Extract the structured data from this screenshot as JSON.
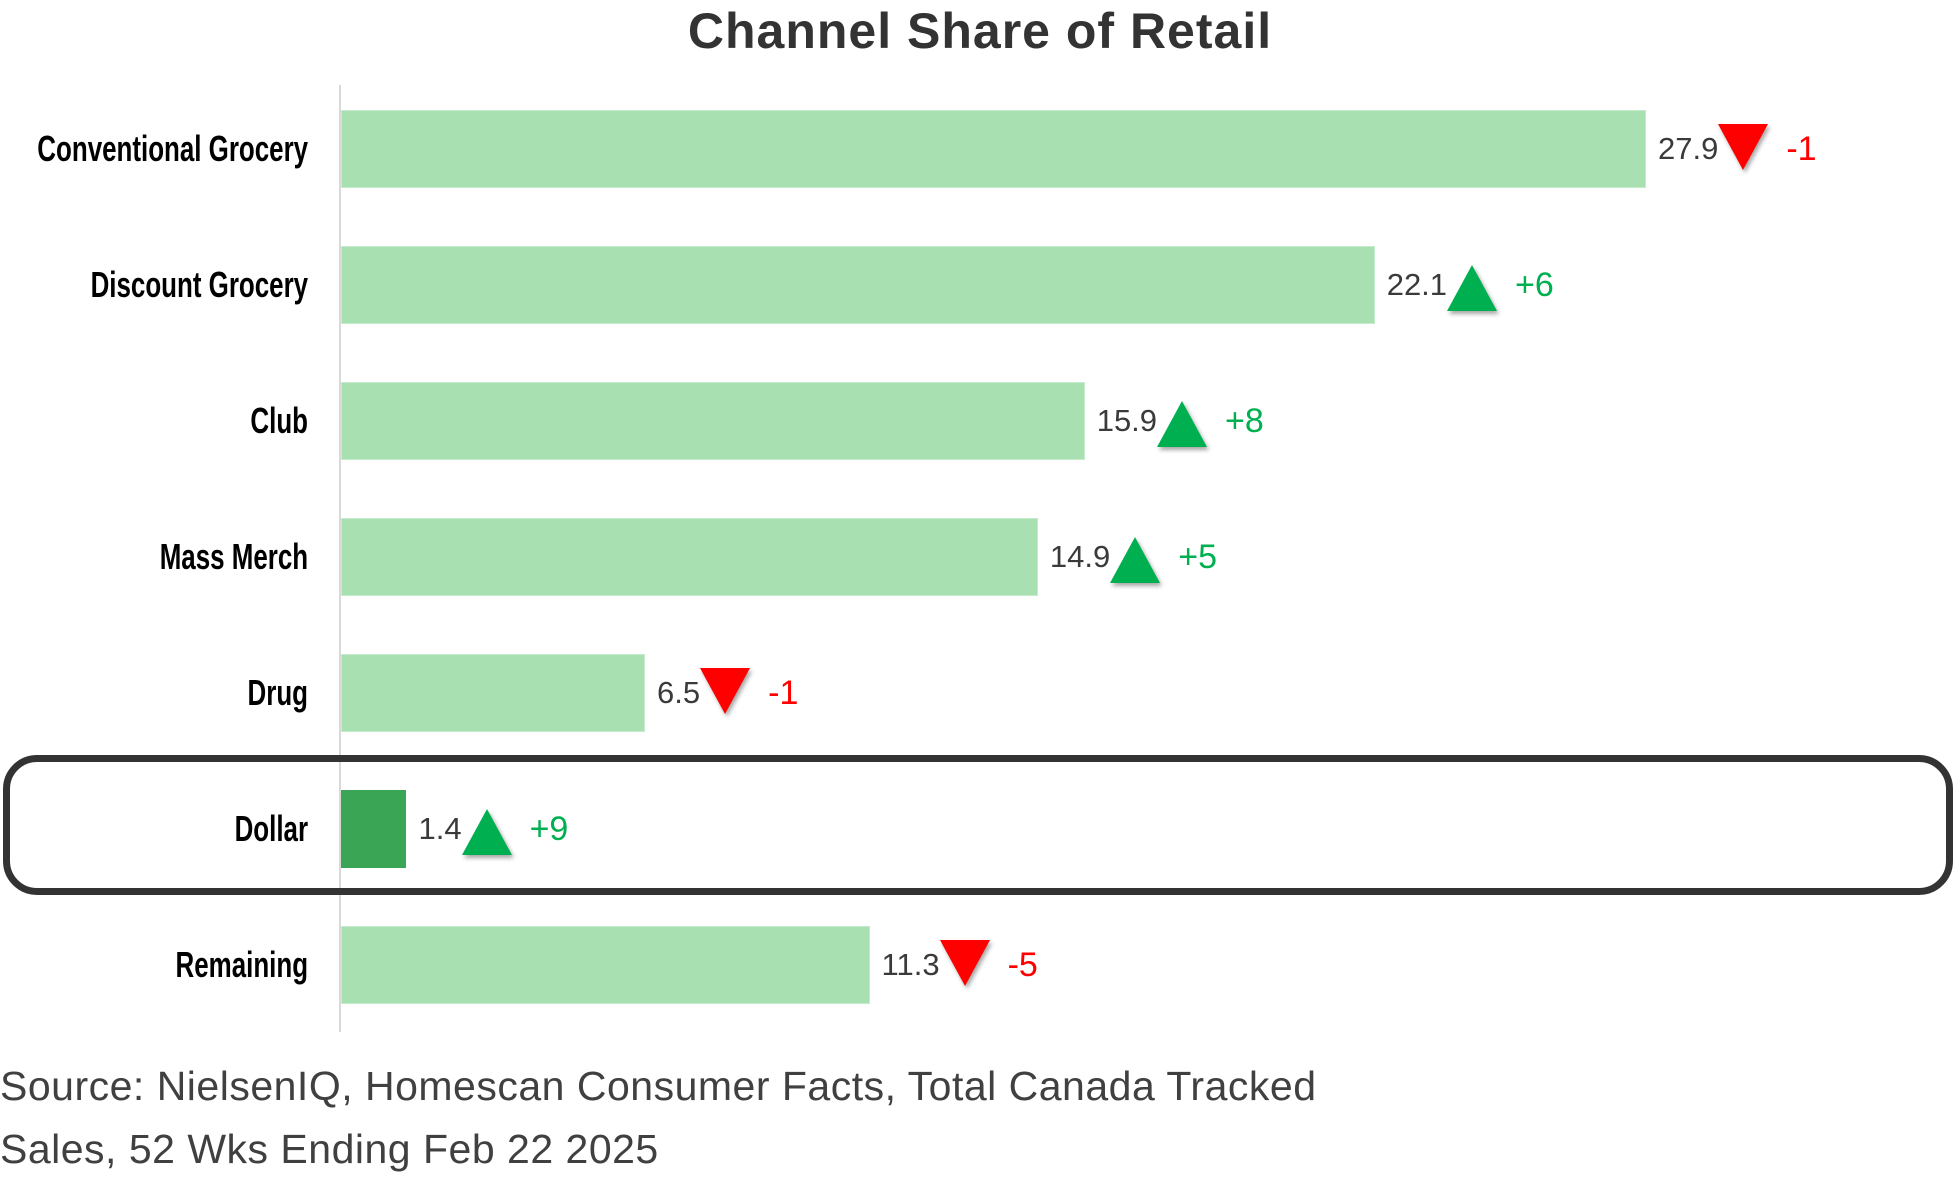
{
  "chart_data": {
    "type": "bar",
    "orientation": "horizontal",
    "title": "Channel Share of Retail",
    "categories": [
      "Conventional Grocery",
      "Discount Grocery",
      "Club",
      "Mass Merch",
      "Drug",
      "Dollar",
      "Remaining"
    ],
    "values": [
      27.9,
      22.1,
      15.9,
      14.9,
      6.5,
      1.4,
      11.3
    ],
    "value_labels": [
      "27.9",
      "22.1",
      "15.9",
      "14.9",
      "6.5",
      "1.4",
      "11.3"
    ],
    "changes": [
      "-1",
      "+6",
      "+8",
      "+5",
      "-1",
      "+9",
      "-5"
    ],
    "change_direction": [
      "down",
      "up",
      "up",
      "up",
      "down",
      "up",
      "down"
    ],
    "highlighted_category": "Dollar",
    "xlim": [
      0,
      27.9
    ],
    "grid": false,
    "colors": {
      "bar": "#a8e0b2",
      "highlight_bar": "#3aa655",
      "up": "#00b050",
      "down": "#ff0000",
      "up_text": "#00b050",
      "down_text": "#ff0000"
    }
  },
  "source": {
    "line1": "Source: NielsenIQ, Homescan Consumer Facts, Total Canada Tracked",
    "line2": "Sales, 52 Wks Ending Feb 22 2025"
  }
}
